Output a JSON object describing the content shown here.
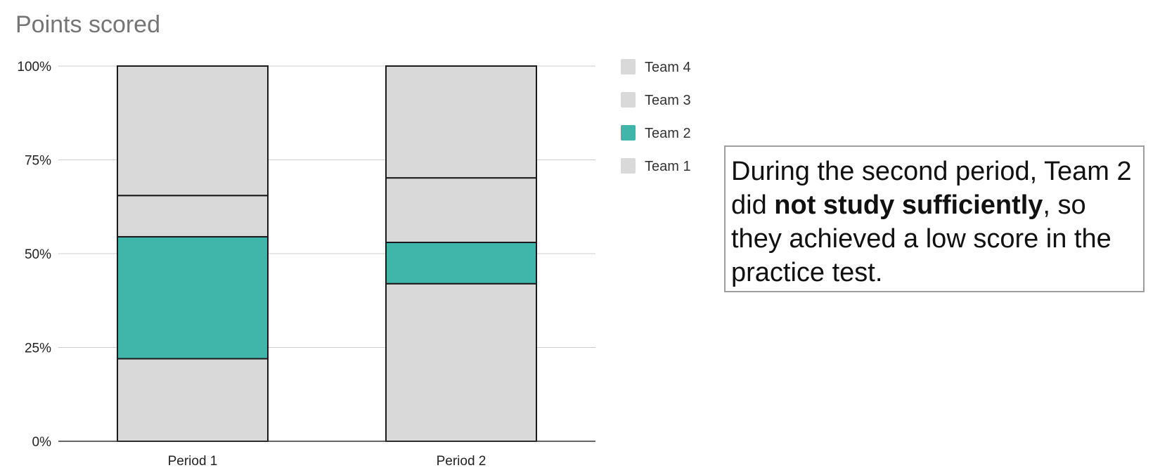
{
  "chart_data": {
    "type": "bar",
    "stacked": true,
    "normalized": true,
    "title": "Points scored",
    "xlabel": "",
    "ylabel": "",
    "categories": [
      "Period 1",
      "Period 2"
    ],
    "ylim": [
      0,
      100
    ],
    "y_ticks": [
      "0%",
      "25%",
      "50%",
      "75%",
      "100%"
    ],
    "grid": true,
    "legend_position": "right",
    "series": [
      {
        "name": "Team 1",
        "values": [
          22,
          42
        ],
        "color": "#d9d9d9"
      },
      {
        "name": "Team 2",
        "values": [
          32.5,
          11
        ],
        "color": "#40b5aa"
      },
      {
        "name": "Team 3",
        "values": [
          11,
          17.2
        ],
        "color": "#d9d9d9"
      },
      {
        "name": "Team 4",
        "values": [
          34.5,
          29.8
        ],
        "color": "#d9d9d9"
      }
    ],
    "legend_order": [
      "Team 4",
      "Team 3",
      "Team 2",
      "Team 1"
    ]
  },
  "annotation": {
    "part1": "During the second period, Team 2 did ",
    "emphasis": "not study sufficiently",
    "part2": ", so they achieved a low score in the practice test."
  }
}
